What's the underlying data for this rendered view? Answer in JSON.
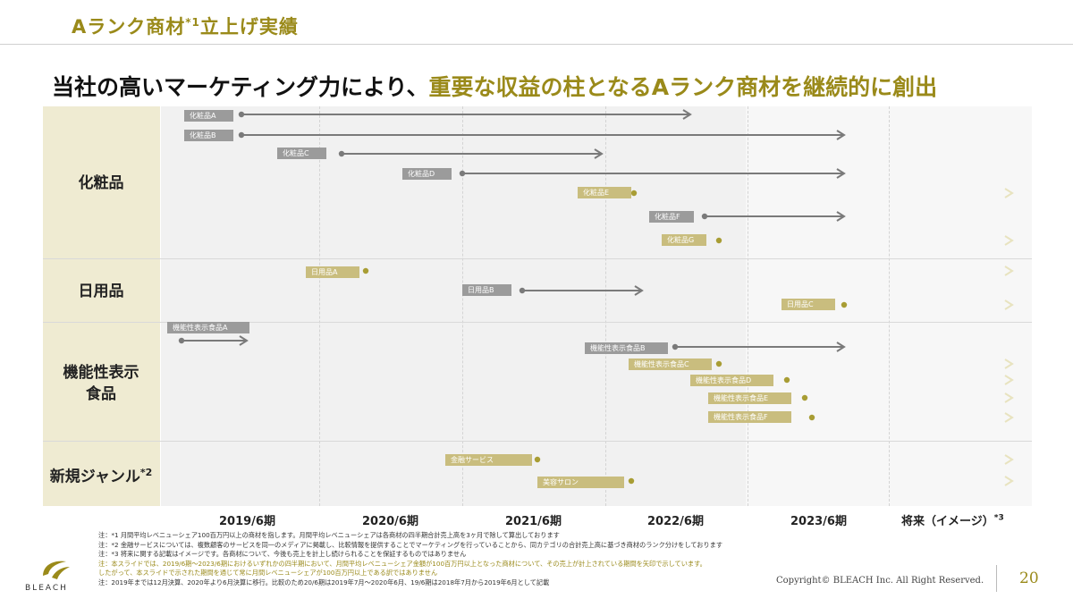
{
  "header": {
    "title_main": "Aランク商材",
    "title_sup": "*1",
    "title_rest": "立上げ実績"
  },
  "headline": {
    "part1": "当社の高いマーケティング力により、",
    "part2": "重要な収益の柱となるAランク商材を継続的に創出"
  },
  "colors": {
    "accent": "#9a8a1a",
    "gold_line": "#a89d34",
    "gray_line": "#7a7a7a",
    "gold_tag": "#c9bd7e",
    "gray_tag": "#9b9b9b",
    "category_bg": "#efebd2"
  },
  "categories": {
    "cosmetics": "化粧品",
    "daily": "日用品",
    "functional_line1": "機能性表示",
    "functional_line2": "食品",
    "new_genre": "新規ジャンル",
    "new_genre_sup": "*2"
  },
  "periods": {
    "p2019": "2019/6期",
    "p2020": "2020/6期",
    "p2021": "2021/6期",
    "p2022": "2022/6期",
    "p2023": "2023/6期",
    "future": "将来（イメージ）",
    "future_sup": "*3"
  },
  "items": [
    {
      "label": "化粧品A",
      "style": "gray",
      "ongoing": false
    },
    {
      "label": "化粧品B",
      "style": "gray",
      "ongoing": false
    },
    {
      "label": "化粧品C",
      "style": "gray",
      "ongoing": false
    },
    {
      "label": "化粧品D",
      "style": "gray",
      "ongoing": false
    },
    {
      "label": "化粧品E",
      "style": "gold",
      "ongoing": true
    },
    {
      "label": "化粧品F",
      "style": "gray",
      "ongoing": false
    },
    {
      "label": "化粧品G",
      "style": "gold",
      "ongoing": true
    },
    {
      "label": "日用品A",
      "style": "gold",
      "ongoing": true
    },
    {
      "label": "日用品B",
      "style": "gray",
      "ongoing": false
    },
    {
      "label": "日用品C",
      "style": "gold",
      "ongoing": true
    },
    {
      "label": "機能性表示食品A",
      "style": "gray",
      "ongoing": false
    },
    {
      "label": "機能性表示食品B",
      "style": "gray",
      "ongoing": false
    },
    {
      "label": "機能性表示食品C",
      "style": "gold",
      "ongoing": true
    },
    {
      "label": "機能性表示食品D",
      "style": "gold",
      "ongoing": true
    },
    {
      "label": "機能性表示食品E",
      "style": "gold",
      "ongoing": true
    },
    {
      "label": "機能性表示食品F",
      "style": "gold",
      "ongoing": true
    },
    {
      "label": "金融サービス",
      "style": "gold",
      "ongoing": true
    },
    {
      "label": "美容サロン",
      "style": "gold",
      "ongoing": true
    }
  ],
  "notes": {
    "n1": "注：*1 月間平均レベニューシェア100百万円以上の商材を指します。月間平均レベニューシェアは各商材の四半期合計売上高を3ヶ月で除して算出しております",
    "n2": "注：*2 金融サービスについては、複数顧客のサービスを同一のメディアに掲載し、比較情報を提供することでマーケティングを行っていることから、同カテゴリの合計売上高に基づき商材のランク分けをしております",
    "n3": "注：*3 将来に関する記載はイメージです。各商材について、今後も売上を計上し続けられることを保証するものではありません",
    "n4": "注：本スライドでは、2019/6期～2023/6期におけるいずれかの四半期において、月間平均レベニューシェア金額が100百万円以上となった商材について、その売上が計上されている期間を矢印で示しています。",
    "n5": "したがって、本スライドで示された期間を通じて常に月間レベニューシェアが100百万円以上である訳ではありません",
    "n6": "注：2019年までは12月決算、2020年より6月決算に移行。比較のため20/6期は2019年7月～2020年6月、19/6期は2018年7月から2019年6月として記載"
  },
  "footer": {
    "logo": "BLEACH",
    "copyright": "Copyright© BLEACH Inc. All Right Reserved.",
    "page": "20"
  }
}
